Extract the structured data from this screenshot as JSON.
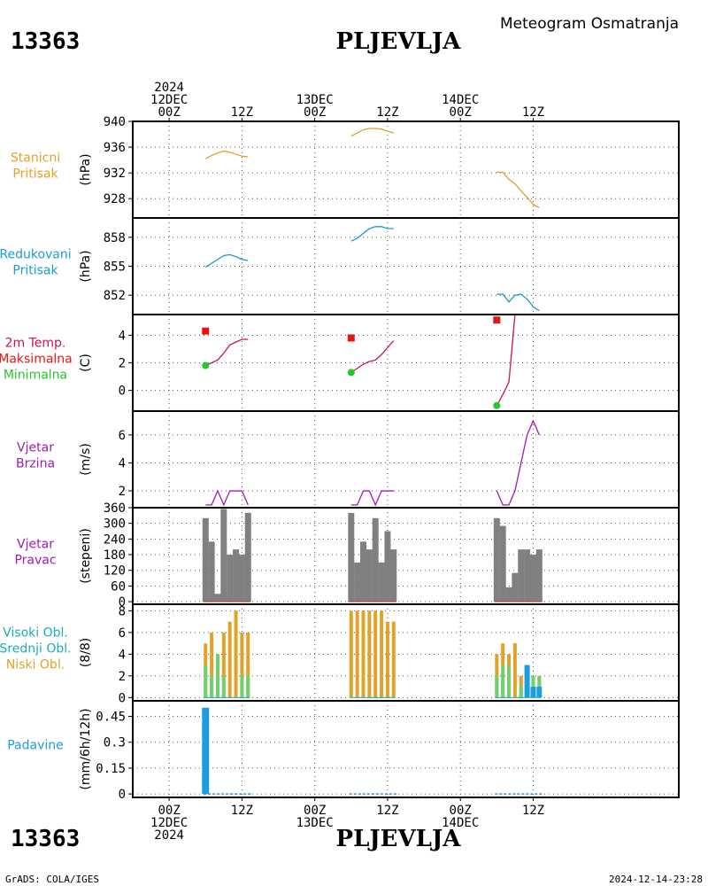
{
  "header": {
    "station_id": "13363",
    "station_name": "PLJEVLJA",
    "subtitle": "Meteogram Osmatranja"
  },
  "footer": {
    "left": "GrADS: COLA/IGES",
    "right": "2024-12-14-23:28"
  },
  "time_axis": {
    "x_range_hours": [
      -6,
      84
    ],
    "top_ticks": [
      {
        "h": 0,
        "lines": [
          "2024",
          "12DEC",
          "00Z"
        ]
      },
      {
        "h": 12,
        "lines": [
          "12Z"
        ]
      },
      {
        "h": 24,
        "lines": [
          "13DEC",
          "00Z"
        ]
      },
      {
        "h": 36,
        "lines": [
          "12Z"
        ]
      },
      {
        "h": 48,
        "lines": [
          "14DEC",
          "00Z"
        ]
      },
      {
        "h": 60,
        "lines": [
          "12Z"
        ]
      }
    ],
    "bottom_ticks": [
      {
        "h": 0,
        "lines": [
          "00Z",
          "12DEC",
          "2024"
        ]
      },
      {
        "h": 12,
        "lines": [
          "12Z"
        ]
      },
      {
        "h": 24,
        "lines": [
          "00Z",
          "13DEC"
        ]
      },
      {
        "h": 36,
        "lines": [
          "12Z"
        ]
      },
      {
        "h": 48,
        "lines": [
          "00Z",
          "14DEC"
        ]
      },
      {
        "h": 60,
        "lines": [
          "12Z"
        ]
      }
    ]
  },
  "colors": {
    "station_pressure": "#e1a22a",
    "reduced_pressure": "#1b9dd1",
    "temp": "#c8125a",
    "tmax": "#e81414",
    "tmin": "#22c92a",
    "wind": "#a01ab4",
    "bars": "#808080",
    "bars_line": "#c0392b",
    "cloud_high": "#1bb0b0",
    "cloud_mid": "#70d070",
    "cloud_low": "#e1a22a",
    "precip": "#1b9de0",
    "grid": "#555555"
  },
  "chart_data": [
    {
      "id": "station_pressure",
      "type": "line",
      "labels": [
        "Stanicni",
        "Pritisak"
      ],
      "unit": "(hPa)",
      "ylim": [
        925,
        940
      ],
      "yticks": [
        928,
        932,
        936,
        940
      ],
      "series": [
        {
          "x": [
            6,
            7,
            8,
            9,
            10,
            11,
            12,
            13
          ],
          "y": [
            934.2,
            934.7,
            935.1,
            935.4,
            935.2,
            934.9,
            934.6,
            934.5
          ]
        },
        {
          "x": [
            30,
            31,
            32,
            33,
            34,
            35,
            36,
            37
          ],
          "y": [
            937.7,
            938.2,
            938.7,
            938.9,
            938.9,
            938.8,
            938.5,
            938.2
          ]
        },
        {
          "x": [
            54,
            55,
            56,
            57,
            58,
            59,
            60,
            61
          ],
          "y": [
            932.1,
            932.1,
            931.0,
            930.3,
            929.2,
            928.2,
            927.1,
            926.6
          ]
        }
      ]
    },
    {
      "id": "reduced_pressure",
      "type": "line",
      "labels": [
        "Redukovani",
        "Pritisak"
      ],
      "unit": "(hPa)",
      "ylim": [
        850,
        860
      ],
      "yticks": [
        852,
        855,
        858
      ],
      "series": [
        {
          "x": [
            6,
            7,
            8,
            9,
            10,
            11,
            12,
            13
          ],
          "y": [
            854.9,
            855.3,
            855.7,
            856.1,
            856.2,
            856.0,
            855.7,
            855.6
          ]
        },
        {
          "x": [
            30,
            31,
            32,
            33,
            34,
            35,
            36,
            37
          ],
          "y": [
            857.6,
            857.9,
            858.4,
            858.9,
            859.1,
            859.1,
            858.9,
            858.9
          ]
        },
        {
          "x": [
            54,
            55,
            56,
            57,
            58,
            59,
            60,
            61
          ],
          "y": [
            852.1,
            852.1,
            851.3,
            852.0,
            852.1,
            851.6,
            850.8,
            850.4
          ]
        }
      ]
    },
    {
      "id": "temperature",
      "type": "line",
      "labels": [
        "2m Temp.",
        "Maksimalna",
        "Minimalna"
      ],
      "unit": "(C)",
      "ylim": [
        -1.5,
        5.5
      ],
      "yticks": [
        0,
        2,
        4
      ],
      "series": [
        {
          "x": [
            6,
            7,
            8,
            9,
            10,
            11,
            12,
            13
          ],
          "y": [
            1.8,
            2.0,
            2.2,
            2.7,
            3.3,
            3.5,
            3.7,
            3.7
          ]
        },
        {
          "x": [
            30,
            31,
            32,
            33,
            34,
            35,
            36,
            37
          ],
          "y": [
            1.3,
            1.6,
            1.9,
            2.1,
            2.2,
            2.6,
            3.1,
            3.6
          ]
        },
        {
          "x": [
            54,
            55,
            56,
            57
          ],
          "y": [
            -1.1,
            -0.3,
            0.6,
            5.5
          ]
        }
      ],
      "tmax": [
        {
          "x": 6,
          "y": 4.3
        },
        {
          "x": 30,
          "y": 3.8
        },
        {
          "x": 54,
          "y": 5.1
        }
      ],
      "tmin": [
        {
          "x": 6,
          "y": 1.8
        },
        {
          "x": 30,
          "y": 1.3
        },
        {
          "x": 54,
          "y": -1.1
        }
      ]
    },
    {
      "id": "wind_speed",
      "type": "line",
      "labels": [
        "Vjetar",
        "Brzina"
      ],
      "unit": "(m/s)",
      "ylim": [
        0.8,
        7.7
      ],
      "yticks": [
        2,
        4,
        6
      ],
      "series": [
        {
          "x": [
            6,
            7,
            8,
            9,
            10,
            11,
            12,
            13
          ],
          "y": [
            1,
            1,
            2,
            1,
            2,
            2,
            2,
            1
          ]
        },
        {
          "x": [
            30,
            31,
            32,
            33,
            34,
            35,
            36,
            37
          ],
          "y": [
            1,
            1,
            2,
            2,
            1,
            2,
            2,
            2
          ]
        },
        {
          "x": [
            54,
            55,
            56,
            57,
            58,
            59,
            60,
            61
          ],
          "y": [
            2,
            1,
            1,
            2,
            4,
            6,
            7,
            6
          ]
        }
      ]
    },
    {
      "id": "wind_direction",
      "type": "bar",
      "labels": [
        "Vjetar",
        "Pravac"
      ],
      "unit": "(stepeni)",
      "ylim": [
        -10,
        360
      ],
      "yticks": [
        0,
        60,
        120,
        180,
        240,
        300,
        360
      ],
      "bars": [
        {
          "x": 6,
          "v": 320
        },
        {
          "x": 7,
          "v": 230
        },
        {
          "x": 8,
          "v": 30
        },
        {
          "x": 9,
          "v": 355
        },
        {
          "x": 10,
          "v": 180
        },
        {
          "x": 11,
          "v": 200
        },
        {
          "x": 12,
          "v": 180
        },
        {
          "x": 13,
          "v": 340
        },
        {
          "x": 30,
          "v": 340
        },
        {
          "x": 31,
          "v": 150
        },
        {
          "x": 32,
          "v": 230
        },
        {
          "x": 33,
          "v": 200
        },
        {
          "x": 34,
          "v": 320
        },
        {
          "x": 35,
          "v": 150
        },
        {
          "x": 36,
          "v": 270
        },
        {
          "x": 37,
          "v": 200
        },
        {
          "x": 54,
          "v": 320
        },
        {
          "x": 55,
          "v": 290
        },
        {
          "x": 56,
          "v": 55
        },
        {
          "x": 57,
          "v": 110
        },
        {
          "x": 58,
          "v": 200
        },
        {
          "x": 59,
          "v": 200
        },
        {
          "x": 60,
          "v": 180
        },
        {
          "x": 61,
          "v": 200
        }
      ]
    },
    {
      "id": "clouds",
      "type": "bar",
      "labels": [
        "Visoki Obl.",
        "Srednji Obl.",
        "Niski Obl."
      ],
      "unit": "(8/8)",
      "ylim": [
        -0.3,
        8.6
      ],
      "yticks": [
        0,
        2,
        4,
        6,
        8
      ],
      "low": [
        {
          "x": 6,
          "v": 5
        },
        {
          "x": 7,
          "v": 6
        },
        {
          "x": 8,
          "v": 4
        },
        {
          "x": 9,
          "v": 6
        },
        {
          "x": 10,
          "v": 7
        },
        {
          "x": 11,
          "v": 8
        },
        {
          "x": 12,
          "v": 6
        },
        {
          "x": 13,
          "v": 6
        },
        {
          "x": 30,
          "v": 8
        },
        {
          "x": 31,
          "v": 8
        },
        {
          "x": 32,
          "v": 8
        },
        {
          "x": 33,
          "v": 8
        },
        {
          "x": 34,
          "v": 8
        },
        {
          "x": 35,
          "v": 8
        },
        {
          "x": 36,
          "v": 7
        },
        {
          "x": 37,
          "v": 7
        },
        {
          "x": 54,
          "v": 4
        },
        {
          "x": 55,
          "v": 5
        },
        {
          "x": 56,
          "v": 4
        },
        {
          "x": 57,
          "v": 5
        },
        {
          "x": 58,
          "v": 2
        },
        {
          "x": 59,
          "v": 3
        },
        {
          "x": 60,
          "v": 2
        },
        {
          "x": 61,
          "v": 2
        }
      ],
      "mid": [
        {
          "x": 6,
          "v": 3
        },
        {
          "x": 7,
          "v": 2
        },
        {
          "x": 8,
          "v": 4
        },
        {
          "x": 9,
          "v": 2
        },
        {
          "x": 12,
          "v": 2
        },
        {
          "x": 13,
          "v": 2
        },
        {
          "x": 54,
          "v": 2
        },
        {
          "x": 55,
          "v": 3
        },
        {
          "x": 56,
          "v": 3
        },
        {
          "x": 58,
          "v": 1
        },
        {
          "x": 60,
          "v": 2
        },
        {
          "x": 61,
          "v": 2
        }
      ],
      "high": [
        {
          "x": 59,
          "v": 3
        },
        {
          "x": 60,
          "v": 1
        },
        {
          "x": 61,
          "v": 1
        }
      ]
    },
    {
      "id": "precipitation",
      "type": "bar",
      "labels": [
        "Padavine"
      ],
      "unit": "(mm/6h/12h)",
      "ylim": [
        -0.02,
        0.54
      ],
      "yticks": [
        0,
        0.15,
        0.3,
        0.45
      ],
      "ytick_labels": [
        "0",
        "0.15",
        "0.3",
        "0.45"
      ],
      "bars": [
        {
          "x": 6,
          "v": 0.5
        }
      ],
      "trace_segments": [
        [
          6,
          13
        ],
        [
          30,
          37
        ],
        [
          54,
          61
        ]
      ]
    }
  ]
}
